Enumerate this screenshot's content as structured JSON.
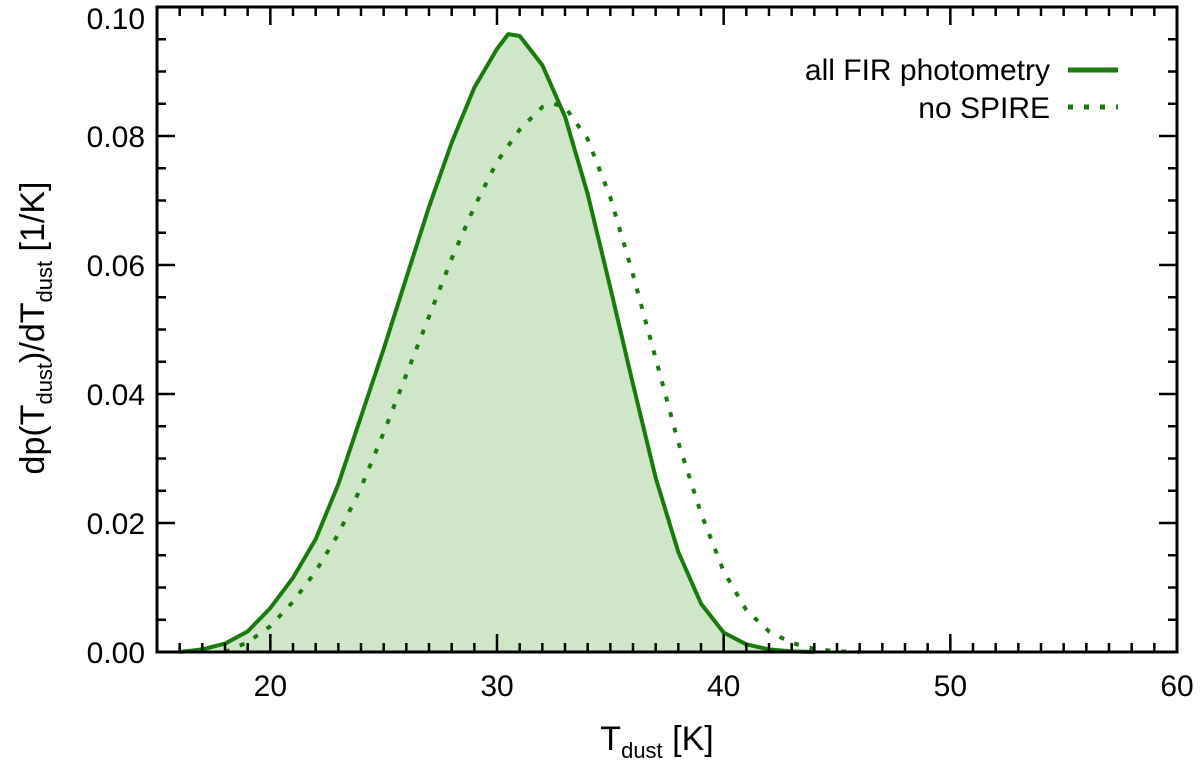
{
  "chart_data": {
    "type": "line",
    "xlabel": {
      "main": "T",
      "sub": "dust",
      "rest": " [K]"
    },
    "ylabel": {
      "p1": "dp(T",
      "s1": "dust",
      "p2": ")/dT",
      "s2": "dust",
      "p3": " [1/K]"
    },
    "xlim": [
      15,
      60
    ],
    "ylim": [
      0,
      0.1
    ],
    "xticks": [
      20,
      30,
      40,
      50,
      60
    ],
    "xtick_labels": [
      "20",
      "30",
      "40",
      "50",
      "60"
    ],
    "yticks": [
      0,
      0.02,
      0.04,
      0.06,
      0.08,
      0.1
    ],
    "ytick_labels": [
      "0.00",
      "0.02",
      "0.04",
      "0.06",
      "0.08",
      "0.10"
    ],
    "xminor_step": 1,
    "yminor_step": 0.005,
    "grid": false,
    "legend_position": "top-right",
    "colors": {
      "line": "#1a7a0e",
      "fill": "#cfe6c9",
      "axis": "#000000"
    },
    "series": [
      {
        "name": "all FIR photometry",
        "style": "solid",
        "filled": true,
        "x": [
          16,
          17,
          18,
          19,
          20,
          21,
          22,
          23,
          24,
          25,
          26,
          27,
          28,
          29,
          30,
          30.5,
          31,
          32,
          33,
          34,
          35,
          36,
          37,
          38,
          39,
          40,
          41,
          42,
          43,
          44
        ],
        "y": [
          0.0,
          0.0004,
          0.0013,
          0.0032,
          0.0068,
          0.0115,
          0.0175,
          0.026,
          0.0365,
          0.047,
          0.058,
          0.069,
          0.079,
          0.0875,
          0.0935,
          0.0958,
          0.0955,
          0.091,
          0.083,
          0.071,
          0.0565,
          0.0415,
          0.027,
          0.0155,
          0.0075,
          0.003,
          0.0012,
          0.0004,
          0.0001,
          0.0
        ]
      },
      {
        "name": "no SPIRE",
        "style": "dotted",
        "filled": false,
        "x": [
          18,
          19,
          20,
          21,
          22,
          23,
          24,
          25,
          26,
          27,
          28,
          29,
          30,
          31,
          32,
          32.5,
          33,
          34,
          35,
          36,
          37,
          38,
          39,
          40,
          41,
          42,
          43,
          44,
          45,
          46
        ],
        "y": [
          0.0,
          0.0015,
          0.004,
          0.0078,
          0.0125,
          0.0183,
          0.0255,
          0.034,
          0.043,
          0.052,
          0.061,
          0.069,
          0.076,
          0.081,
          0.0845,
          0.085,
          0.0845,
          0.0795,
          0.0705,
          0.0585,
          0.0455,
          0.0325,
          0.0215,
          0.0125,
          0.0065,
          0.0032,
          0.0014,
          0.0005,
          0.0001,
          0.0
        ]
      }
    ]
  }
}
